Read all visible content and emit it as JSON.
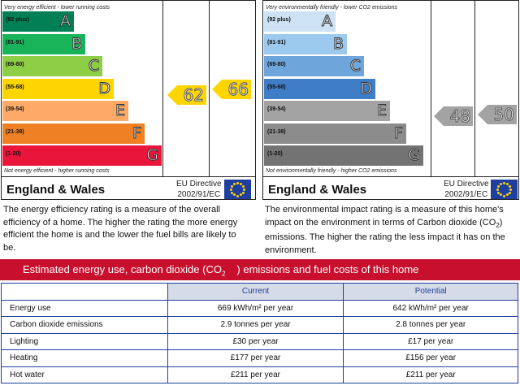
{
  "energy_chart": {
    "top_caption": "Very energy efficient - lower running costs",
    "bottom_caption": "Not energy efficient - higher running costs",
    "bands": [
      {
        "range": "(92 plus)",
        "letter": "A",
        "color": "#008054"
      },
      {
        "range": "(81-91)",
        "letter": "B",
        "color": "#19b459"
      },
      {
        "range": "(69-80)",
        "letter": "C",
        "color": "#8dce46"
      },
      {
        "range": "(55-68)",
        "letter": "D",
        "color": "#ffd500"
      },
      {
        "range": "(39-54)",
        "letter": "E",
        "color": "#fcaa65"
      },
      {
        "range": "(21-38)",
        "letter": "F",
        "color": "#ef8023"
      },
      {
        "range": "(1-20)",
        "letter": "G",
        "color": "#e9153b"
      }
    ],
    "current": "62",
    "potential": "66",
    "arrow_color": "#ffd500",
    "region": "England & Wales",
    "directive_line1": "EU Directive",
    "directive_line2": "2002/91/EC"
  },
  "environment_chart": {
    "top_caption": "Very environmentally friendly - lower CO2 emissions",
    "bottom_caption": "Not environmentally friendly - higher CO2 emissions",
    "bands": [
      {
        "range": "(92 plus)",
        "letter": "A",
        "color": "#cde3f5"
      },
      {
        "range": "(81-91)",
        "letter": "B",
        "color": "#9cc9ee"
      },
      {
        "range": "(69-80)",
        "letter": "C",
        "color": "#6ea6dc"
      },
      {
        "range": "(55-68)",
        "letter": "D",
        "color": "#3f7ec6"
      },
      {
        "range": "(39-54)",
        "letter": "E",
        "color": "#a3a3a3"
      },
      {
        "range": "(21-38)",
        "letter": "F",
        "color": "#8c8c8c"
      },
      {
        "range": "(1-20)",
        "letter": "G",
        "color": "#737373"
      }
    ],
    "current": "48",
    "potential": "50",
    "arrow_color": "#a3a3a3",
    "region": "England & Wales",
    "directive_line1": "EU Directive",
    "directive_line2": "2002/91/EC"
  },
  "energy_description": "The energy efficiency rating is a measure of the overall efficiency of a home. The higher the rating the more energy efficient the home is and the lower the fuel bills are likely to be.",
  "environment_description": {
    "part1": "The environmental impact rating is a measure of this home's impact on the environment in terms of Carbon dioxide (CO",
    "sub": "2",
    "part2": ") emissions. The higher the rating the less impact it has on the environment."
  },
  "banner": {
    "part1": "Estimated energy use, carbon dioxide (CO",
    "sub": "2",
    "part2": ") emissions and fuel costs of this home"
  },
  "costs_table": {
    "headers": [
      "",
      "Current",
      "Potential"
    ],
    "rows": [
      {
        "label": "Energy use",
        "current": "669 kWh/m² per year",
        "potential": "642 kWh/m² per year"
      },
      {
        "label": "Carbon dioxide emissions",
        "current": "2.9 tonnes per year",
        "potential": "2.8 tonnes per year"
      },
      {
        "label": "Lighting",
        "current": "£30 per year",
        "potential": "£17 per year"
      },
      {
        "label": "Heating",
        "current": "£177 per year",
        "potential": "£156 per year"
      },
      {
        "label": "Hot water",
        "current": "£211 per year",
        "potential": "£211 per year"
      }
    ]
  }
}
